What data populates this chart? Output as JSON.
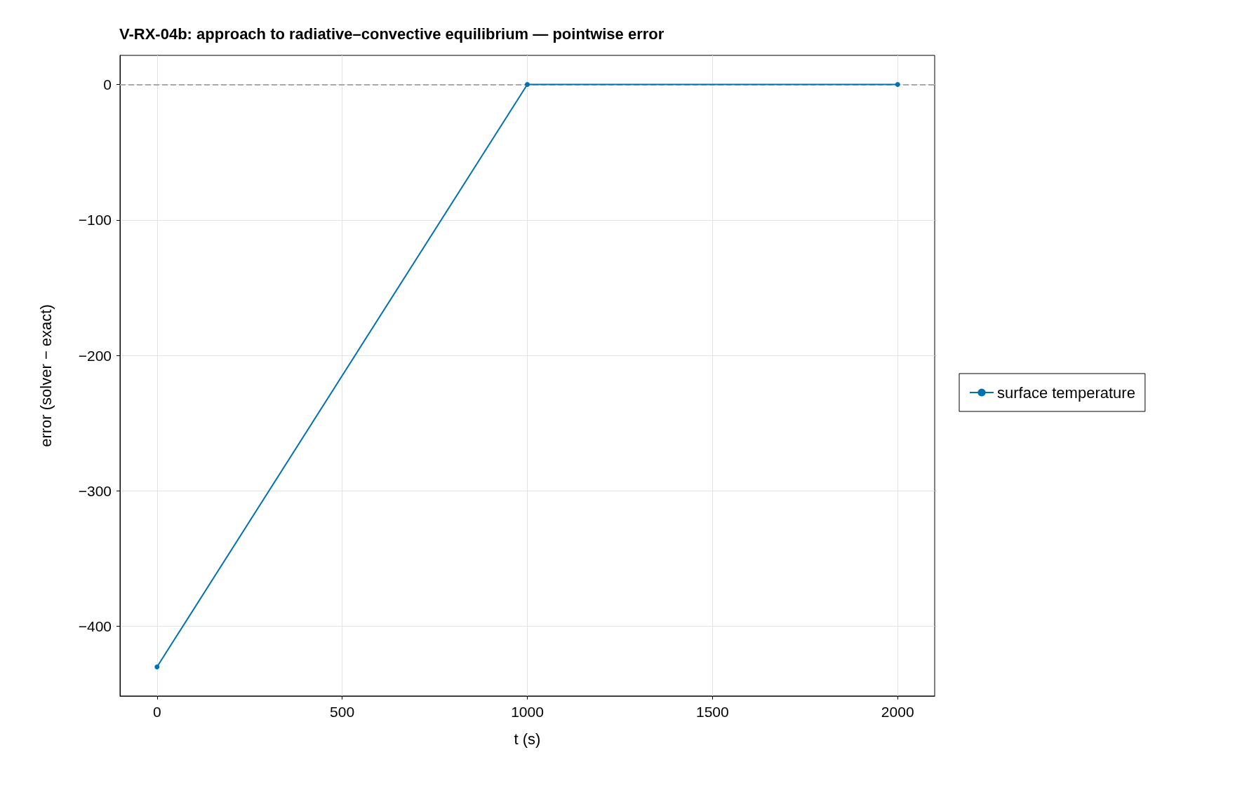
{
  "chart_data": {
    "type": "line",
    "title": "V-RX-04b: approach to radiative–convective equilibrium — pointwise error",
    "xlabel": "t (s)",
    "ylabel": "error (solver − exact)",
    "x": [
      0,
      1000,
      2000
    ],
    "series": [
      {
        "name": "surface temperature",
        "color": "#0072b2",
        "values": [
          -430,
          0,
          0
        ]
      }
    ],
    "xlim": [
      -100,
      2100
    ],
    "xticks": [
      0,
      500,
      1000,
      1500,
      2000
    ],
    "ylim": [
      -451.5,
      21.5
    ],
    "yticks": [
      {
        "value": -400,
        "label": "−400"
      },
      {
        "value": -300,
        "label": "−300"
      },
      {
        "value": -200,
        "label": "−200"
      },
      {
        "value": -100,
        "label": "−100"
      },
      0
    ],
    "ref_lines": [
      {
        "axis": "y",
        "value": 0,
        "color": "#aaaaaa",
        "line_style": "dashed"
      }
    ],
    "grid": true,
    "legend": "right",
    "marker": "circle",
    "line_style": "solid"
  }
}
